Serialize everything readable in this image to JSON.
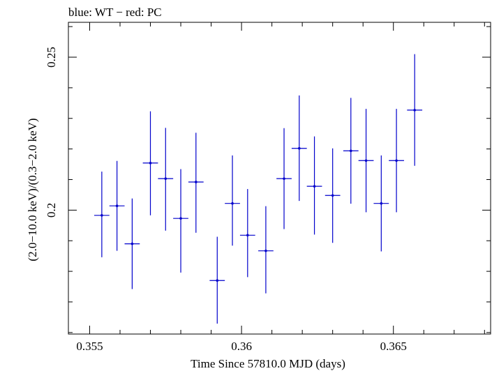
{
  "chart_data": {
    "type": "scatter",
    "title": "blue: WT − red: PC",
    "xlabel": "Time Since 57810.0 MJD (days)",
    "ylabel": "(2.0−10.0 keV)/(0.3−2.0 keV)",
    "xlim": [
      0.3543,
      0.3682
    ],
    "ylim": [
      0.1595,
      0.2614
    ],
    "x_ticks": [
      0.355,
      0.36,
      0.365
    ],
    "x_tick_labels": [
      "0.355",
      "0.36",
      "0.365"
    ],
    "y_ticks": [
      0.2,
      0.25
    ],
    "y_tick_labels": [
      "0.2",
      "0.25"
    ],
    "grid": false,
    "series": [
      {
        "color": "#0000cc",
        "points": [
          {
            "x": 0.3554,
            "xerr": 0.00025,
            "y": 0.1983,
            "yerr_low": 0.0137,
            "yerr_high": 0.0143
          },
          {
            "x": 0.3559,
            "xerr": 0.00025,
            "y": 0.2014,
            "yerr_low": 0.0147,
            "yerr_high": 0.0147
          },
          {
            "x": 0.3564,
            "xerr": 0.00025,
            "y": 0.189,
            "yerr_low": 0.0148,
            "yerr_high": 0.0148
          },
          {
            "x": 0.357,
            "xerr": 0.00025,
            "y": 0.2154,
            "yerr_low": 0.0171,
            "yerr_high": 0.0169
          },
          {
            "x": 0.3575,
            "xerr": 0.00025,
            "y": 0.2103,
            "yerr_low": 0.017,
            "yerr_high": 0.0166
          },
          {
            "x": 0.358,
            "xerr": 0.00025,
            "y": 0.1973,
            "yerr_low": 0.0177,
            "yerr_high": 0.0161
          },
          {
            "x": 0.3585,
            "xerr": 0.00025,
            "y": 0.2092,
            "yerr_low": 0.0166,
            "yerr_high": 0.0161
          },
          {
            "x": 0.3592,
            "xerr": 0.00025,
            "y": 0.177,
            "yerr_low": 0.0141,
            "yerr_high": 0.0143
          },
          {
            "x": 0.3597,
            "xerr": 0.00025,
            "y": 0.2022,
            "yerr_low": 0.0138,
            "yerr_high": 0.0157
          },
          {
            "x": 0.3602,
            "xerr": 0.00025,
            "y": 0.1918,
            "yerr_low": 0.0137,
            "yerr_high": 0.0151
          },
          {
            "x": 0.3608,
            "xerr": 0.00025,
            "y": 0.1867,
            "yerr_low": 0.0139,
            "yerr_high": 0.0146
          },
          {
            "x": 0.3614,
            "xerr": 0.00025,
            "y": 0.2103,
            "yerr_low": 0.0165,
            "yerr_high": 0.0165
          },
          {
            "x": 0.3619,
            "xerr": 0.00025,
            "y": 0.2202,
            "yerr_low": 0.0172,
            "yerr_high": 0.0173
          },
          {
            "x": 0.3624,
            "xerr": 0.00025,
            "y": 0.2078,
            "yerr_low": 0.0158,
            "yerr_high": 0.0163
          },
          {
            "x": 0.363,
            "xerr": 0.00025,
            "y": 0.2048,
            "yerr_low": 0.0155,
            "yerr_high": 0.0154
          },
          {
            "x": 0.3636,
            "xerr": 0.00025,
            "y": 0.2194,
            "yerr_low": 0.0173,
            "yerr_high": 0.0173
          },
          {
            "x": 0.3641,
            "xerr": 0.00025,
            "y": 0.2162,
            "yerr_low": 0.0169,
            "yerr_high": 0.0169
          },
          {
            "x": 0.3646,
            "xerr": 0.00025,
            "y": 0.2022,
            "yerr_low": 0.0157,
            "yerr_high": 0.0157
          },
          {
            "x": 0.3651,
            "xerr": 0.00025,
            "y": 0.2162,
            "yerr_low": 0.0169,
            "yerr_high": 0.0169
          },
          {
            "x": 0.3657,
            "xerr": 0.00025,
            "y": 0.2327,
            "yerr_low": 0.0182,
            "yerr_high": 0.0183
          }
        ]
      }
    ]
  }
}
